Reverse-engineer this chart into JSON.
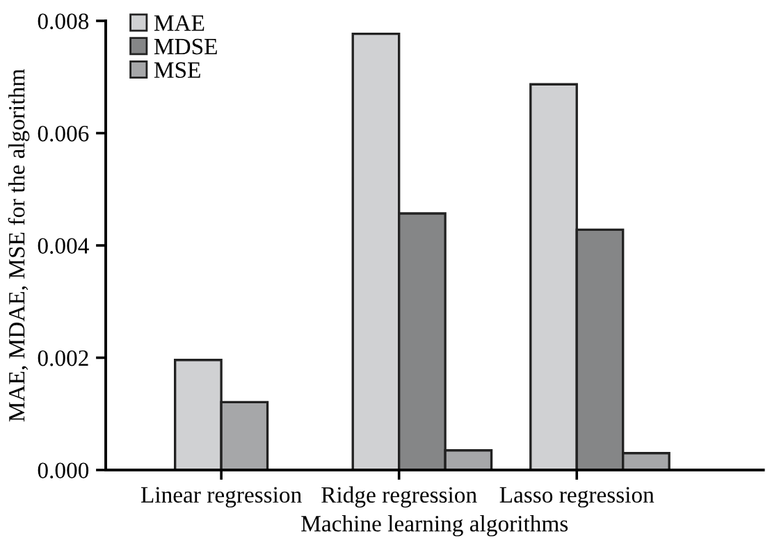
{
  "chart_data": {
    "type": "bar",
    "xlabel": "Machine learning algorithms",
    "ylabel": "MAE, MDAE, MSE for the algorithm",
    "categories": [
      "Linear regression",
      "Ridge regression",
      "Lasso regression"
    ],
    "series": [
      {
        "name": "MAE",
        "color": "#d0d1d3",
        "values": [
          0.00196,
          0.00777,
          0.00687
        ]
      },
      {
        "name": "MDSE",
        "color": "#858687",
        "colors": [
          "#a6a7a9",
          "#858687",
          "#858687"
        ],
        "values": [
          0.00121,
          0.00457,
          0.00428
        ]
      },
      {
        "name": "MSE",
        "color": "#a6a7a9",
        "values": [
          null,
          0.00035,
          0.0003
        ]
      }
    ],
    "ylim": [
      0,
      0.008
    ],
    "yticks": [
      {
        "value": 0,
        "label": "0.000"
      },
      {
        "value": 0.002,
        "label": "0.002"
      },
      {
        "value": 0.004,
        "label": "0.004"
      },
      {
        "value": 0.006,
        "label": "0.006"
      },
      {
        "value": 0.008,
        "label": "0.008"
      }
    ],
    "grid": false,
    "legend": "top left"
  }
}
